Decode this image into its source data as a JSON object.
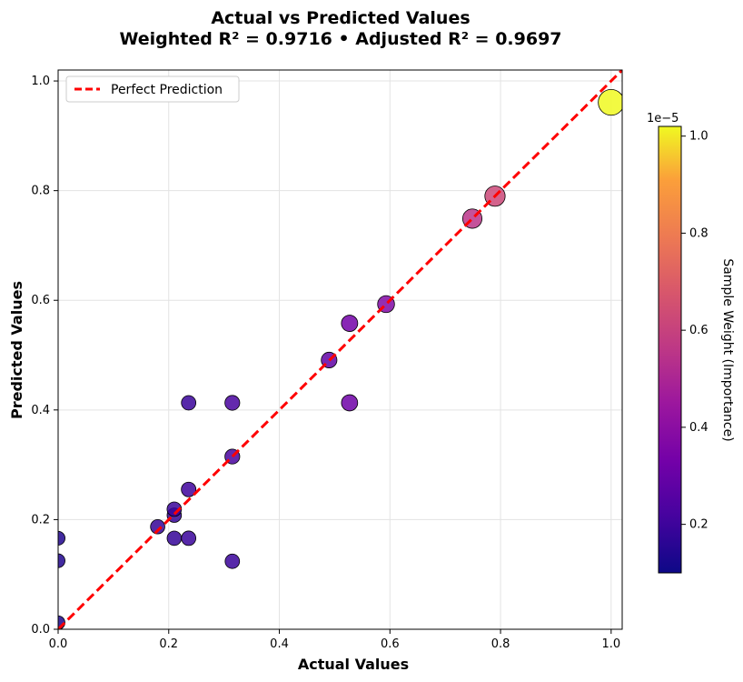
{
  "chart_data": {
    "type": "scatter",
    "title_line1": "Actual vs Predicted Values",
    "title_line2": "Weighted R² = 0.9716  •  Adjusted R² = 0.9697",
    "xlabel": "Actual Values",
    "ylabel": "Predicted Values",
    "xlim": [
      0,
      1.02
    ],
    "ylim": [
      0,
      1.02
    ],
    "xticks": [
      "0.0",
      "0.2",
      "0.4",
      "0.6",
      "0.8",
      "1.0"
    ],
    "yticks": [
      "0.0",
      "0.2",
      "0.4",
      "0.6",
      "0.8",
      "1.0"
    ],
    "grid": true,
    "legend": {
      "label": "Perfect Prediction",
      "position": "top-left"
    },
    "reference_line": {
      "name": "Perfect Prediction",
      "color": "#ff0000",
      "style": "dashed"
    },
    "colorbar": {
      "label": "Sample Weight (Importance)",
      "scale_note": "1e−5",
      "range": [
        0.1,
        1.02
      ],
      "ticks": [
        "0.2",
        "0.4",
        "0.6",
        "0.8",
        "1.0"
      ],
      "colormap": "plasma"
    },
    "points": [
      {
        "x": 0.0,
        "y": 0.012,
        "weight": 0.13
      },
      {
        "x": 0.0,
        "y": 0.125,
        "weight": 0.14
      },
      {
        "x": 0.0,
        "y": 0.166,
        "weight": 0.14
      },
      {
        "x": 0.18,
        "y": 0.187,
        "weight": 0.18
      },
      {
        "x": 0.21,
        "y": 0.166,
        "weight": 0.18
      },
      {
        "x": 0.21,
        "y": 0.208,
        "weight": 0.18
      },
      {
        "x": 0.21,
        "y": 0.219,
        "weight": 0.19
      },
      {
        "x": 0.236,
        "y": 0.255,
        "weight": 0.2
      },
      {
        "x": 0.236,
        "y": 0.166,
        "weight": 0.19
      },
      {
        "x": 0.236,
        "y": 0.413,
        "weight": 0.19
      },
      {
        "x": 0.315,
        "y": 0.413,
        "weight": 0.22
      },
      {
        "x": 0.315,
        "y": 0.315,
        "weight": 0.22
      },
      {
        "x": 0.315,
        "y": 0.124,
        "weight": 0.19
      },
      {
        "x": 0.49,
        "y": 0.491,
        "weight": 0.28
      },
      {
        "x": 0.527,
        "y": 0.558,
        "weight": 0.33
      },
      {
        "x": 0.527,
        "y": 0.413,
        "weight": 0.32
      },
      {
        "x": 0.593,
        "y": 0.593,
        "weight": 0.37
      },
      {
        "x": 0.749,
        "y": 0.749,
        "weight": 0.55
      },
      {
        "x": 0.79,
        "y": 0.79,
        "weight": 0.62
      },
      {
        "x": 1.0,
        "y": 0.961,
        "weight": 1.02
      }
    ]
  }
}
